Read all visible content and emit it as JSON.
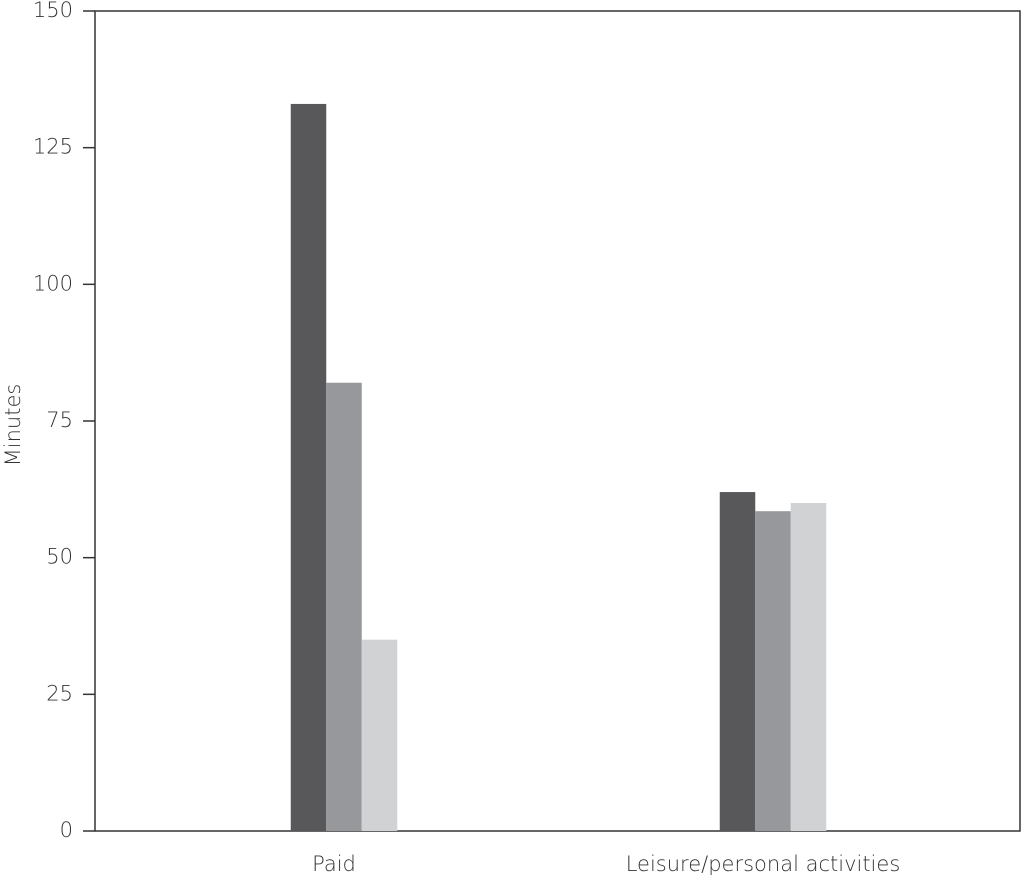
{
  "chart_data": {
    "type": "bar",
    "y_label": "Minutes",
    "categories": [
      "Paid",
      "Leisure/personal activities"
    ],
    "series": [
      {
        "color": "#58585a",
        "values": [
          133,
          62
        ]
      },
      {
        "color": "#97989b",
        "values": [
          82,
          58.5
        ]
      },
      {
        "color": "#d1d2d4",
        "values": [
          35,
          60
        ]
      }
    ],
    "ylim": [
      0,
      150
    ],
    "yticks": [
      0,
      25,
      50,
      75,
      100,
      125,
      150
    ]
  }
}
